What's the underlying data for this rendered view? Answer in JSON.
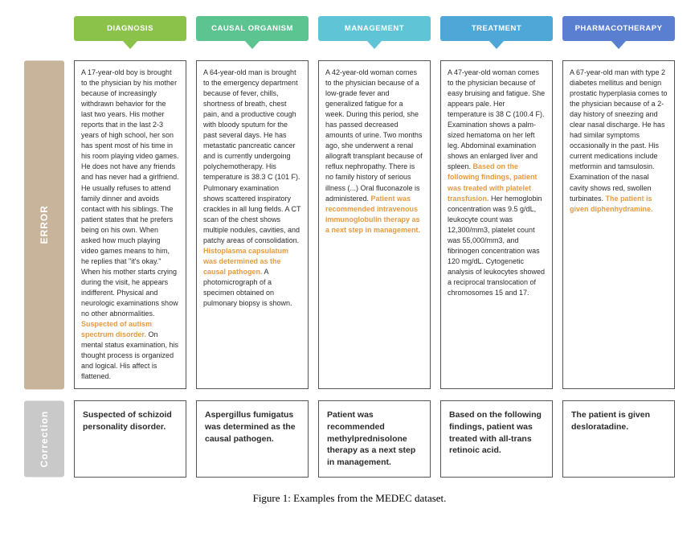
{
  "columns": [
    {
      "label": "DIAGNOSIS",
      "color": "#8bc34a"
    },
    {
      "label": "CAUSAL ORGANISM",
      "color": "#5bc490"
    },
    {
      "label": "MANAGEMENT",
      "color": "#5fc5d6"
    },
    {
      "label": "TREATMENT",
      "color": "#4fa7d8"
    },
    {
      "label": "PHARMACOTHERAPY",
      "color": "#5a7fd0"
    }
  ],
  "rows": {
    "error": {
      "label": "ERROR",
      "bg": "#c8b49b"
    },
    "correction": {
      "label": "Correction",
      "bg": "#c9c9c9"
    }
  },
  "highlight_color": "#e69a42",
  "cells": {
    "error": [
      {
        "pre": "A 17-year-old boy is brought to the physician by his mother because of increasingly withdrawn behavior for the last two years. His mother reports that in the last 2-3 years of high school, her son has spent most of his time in his room playing video games. He does not have any friends and has never had a girlfriend. He usually refuses to attend family dinner and avoids contact with his siblings. The patient states that he prefers being on his own. When asked how much playing video games means to him, he replies that \"it's okay.\" When his mother starts crying during the visit, he appears indifferent. Physical and neurologic examinations show no other abnormalities. ",
        "hl": "Suspected of autism spectrum disorder.",
        "post": " On mental status examination, his thought process is organized and logical. His affect is flattened."
      },
      {
        "pre": "A 64-year-old man is brought to the emergency department because of fever, chills, shortness of breath, chest pain, and a productive cough with bloody sputum for the past several days. He has metastatic pancreatic cancer and is currently undergoing polychemotherapy. His temperature is 38.3 C (101 F). Pulmonary examination shows scattered inspiratory crackles in all lung fields. A CT scan of the chest shows multiple nodules, cavities, and patchy areas of consolidation. ",
        "hl": "Histoplasma capsulatum was determined as the causal pathogen.",
        "post": " A photomicrograph of a specimen obtained on pulmonary biopsy is shown."
      },
      {
        "pre": "A 42-year-old woman comes to the physician because of a low-grade fever and generalized fatigue for a week. During this period, she has passed decreased amounts of urine. Two months ago, she underwent a renal allograft transplant because of reflux nephropathy. There is no family history of serious illness (...)  Oral fluconazole is administered. ",
        "hl": "Patient was recommended intravenous immunoglobulin therapy as a next step in management.",
        "post": ""
      },
      {
        "pre": "A 47-year-old woman comes to the physician because of easy bruising and fatigue. She appears pale. Her temperature is 38 C (100.4 F). Examination shows a palm-sized hematoma on her left leg. Abdominal examination shows an enlarged liver and spleen. ",
        "hl": "Based on the following findings, patient was treated with platelet transfusion.",
        "post": " Her hemoglobin concentration was 9.5 g/dL, leukocyte count was 12,300/mm3, platelet count was 55,000/mm3, and fibrinogen concentration was 120 mg/dL. Cytogenetic analysis of leukocytes showed a reciprocal translocation of chromosomes 15 and 17."
      },
      {
        "pre": "A 67-year-old man with type 2 diabetes mellitus and benign prostatic hyperplasia comes to the physician because of a 2-day history of sneezing and clear nasal discharge. He has had similar symptoms occasionally in the past. His current medications include metformin and tamsulosin. Examination of the nasal cavity shows red, swollen turbinates. ",
        "hl": "The patient is given diphenhydramine.",
        "post": ""
      }
    ],
    "correction": [
      "Suspected of schizoid personality disorder.",
      "Aspergillus fumigatus was determined as the causal pathogen.",
      "Patient was recommended methylprednisolone therapy as a next step in management.",
      "Based on the following findings, patient was treated with all-trans retinoic acid.",
      "The patient is given desloratadine."
    ]
  },
  "caption": "Figure 1: Examples from the MEDEC dataset."
}
